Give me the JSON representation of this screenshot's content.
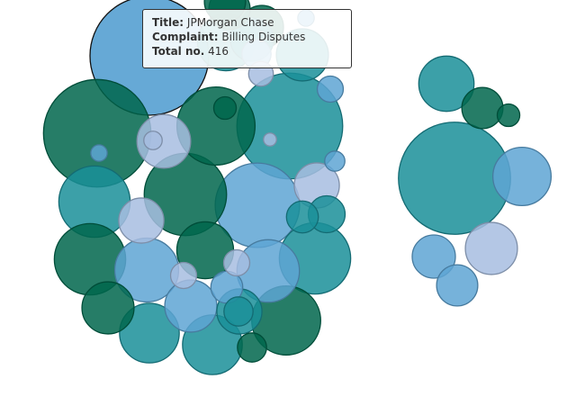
{
  "tooltip": {
    "title_label": "Title:",
    "title_value": "JPMorgan Chase",
    "complaint_label": "Complaint:",
    "complaint_value": "Billing Disputes",
    "total_label": "Total no.",
    "total_value": "416"
  },
  "colors": {
    "dark_green": "#00664c",
    "teal": "#1a8f99",
    "mid_blue": "#5ea4d4",
    "light_blue": "#a7bde0"
  },
  "chart_data": {
    "type": "bubble",
    "title": "",
    "clusters": [
      {
        "bubbles": [
          {
            "value": 416,
            "color": "mid_blue",
            "highlighted": true
          },
          {
            "value": 340,
            "color": "dark_green"
          },
          {
            "value": 330,
            "color": "teal"
          },
          {
            "value": 210,
            "color": "mid_blue"
          },
          {
            "value": 200,
            "color": "dark_green"
          },
          {
            "value": 180,
            "color": "dark_green"
          },
          {
            "value": 150,
            "color": "teal"
          },
          {
            "value": 150,
            "color": "teal"
          },
          {
            "value": 150,
            "color": "dark_green"
          },
          {
            "value": 140,
            "color": "dark_green"
          },
          {
            "value": 120,
            "color": "mid_blue"
          },
          {
            "value": 115,
            "color": "mid_blue"
          },
          {
            "value": 105,
            "color": "teal"
          },
          {
            "value": 105,
            "color": "teal"
          },
          {
            "value": 95,
            "color": "dark_green"
          },
          {
            "value": 95,
            "color": "teal"
          },
          {
            "value": 85,
            "color": "light_blue"
          },
          {
            "value": 80,
            "color": "dark_green"
          },
          {
            "value": 80,
            "color": "teal"
          },
          {
            "value": 80,
            "color": "mid_blue"
          },
          {
            "value": 60,
            "color": "light_blue"
          },
          {
            "value": 60,
            "color": "light_blue"
          },
          {
            "value": 60,
            "color": "teal"
          },
          {
            "value": 55,
            "color": "dark_green"
          },
          {
            "value": 55,
            "color": "teal"
          },
          {
            "value": 50,
            "color": "dark_green"
          },
          {
            "value": 50,
            "color": "dark_green"
          },
          {
            "value": 40,
            "color": "teal"
          },
          {
            "value": 30,
            "color": "mid_blue"
          },
          {
            "value": 30,
            "color": "teal"
          },
          {
            "value": 25,
            "color": "dark_green"
          },
          {
            "value": 25,
            "color": "teal"
          },
          {
            "value": 25,
            "color": "mid_blue"
          },
          {
            "value": 20,
            "color": "light_blue"
          },
          {
            "value": 20,
            "color": "light_blue"
          },
          {
            "value": 20,
            "color": "mid_blue"
          },
          {
            "value": 18,
            "color": "light_blue"
          },
          {
            "value": 15,
            "color": "dark_green"
          },
          {
            "value": 12,
            "color": "mid_blue"
          },
          {
            "value": 10,
            "color": "light_blue"
          },
          {
            "value": 8,
            "color": "mid_blue"
          },
          {
            "value": 8,
            "color": "mid_blue"
          },
          {
            "value": 5,
            "color": "light_blue"
          }
        ]
      },
      {
        "bubbles": [
          {
            "value": 370,
            "color": "teal"
          },
          {
            "value": 100,
            "color": "mid_blue"
          },
          {
            "value": 80,
            "color": "light_blue"
          },
          {
            "value": 90,
            "color": "teal"
          },
          {
            "value": 50,
            "color": "dark_green"
          },
          {
            "value": 55,
            "color": "mid_blue"
          },
          {
            "value": 50,
            "color": "mid_blue"
          },
          {
            "value": 15,
            "color": "dark_green"
          }
        ]
      }
    ]
  }
}
